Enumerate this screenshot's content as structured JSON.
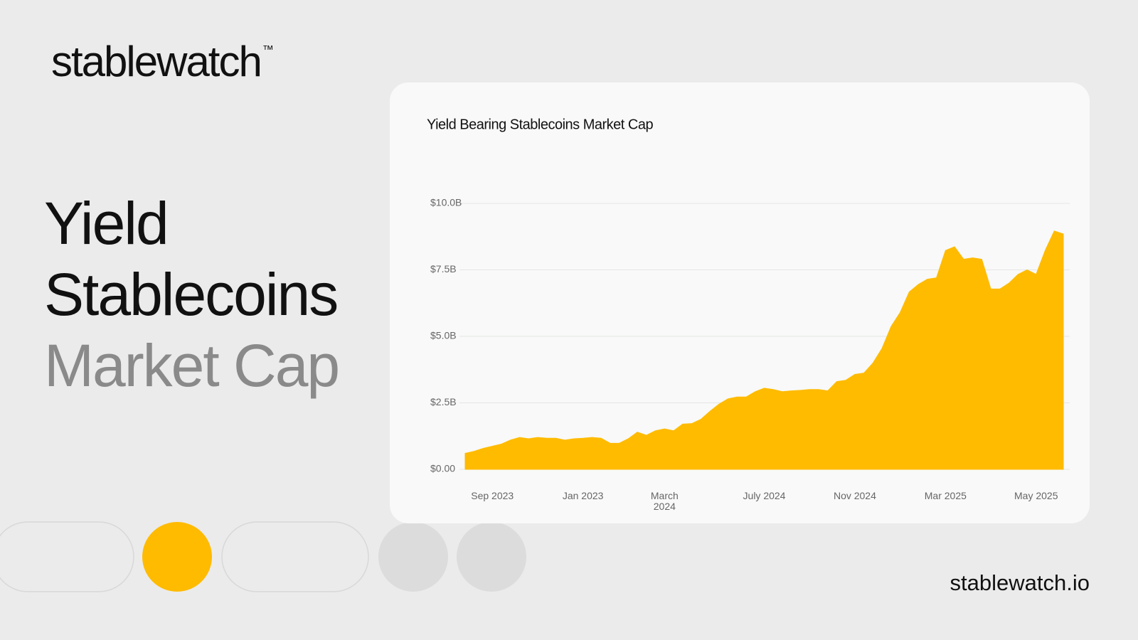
{
  "brand": "stablewatch",
  "brand_mark": "™",
  "headline": [
    "Yield",
    "Stablecoins",
    "Market Cap"
  ],
  "footer": "stablewatch.io",
  "chart_data": {
    "type": "area",
    "title": "Yield Bearing Stablecoins Market Cap",
    "color": "#ffbb00",
    "categories": [
      null,
      null,
      null,
      "Sep 2023",
      null,
      null,
      null,
      null,
      null,
      null,
      null,
      null,
      null,
      "Jan 2023",
      null,
      null,
      null,
      null,
      null,
      null,
      null,
      null,
      "March 2024",
      null,
      null,
      null,
      null,
      null,
      null,
      null,
      null,
      null,
      null,
      "July 2024",
      null,
      null,
      null,
      null,
      null,
      null,
      null,
      null,
      null,
      "Nov 2024",
      null,
      null,
      null,
      null,
      null,
      null,
      null,
      null,
      null,
      "Mar 2025",
      null,
      null,
      null,
      null,
      null,
      null,
      null,
      null,
      null,
      "May 2025",
      null,
      null,
      null
    ],
    "values": [
      0.6,
      0.68,
      0.79,
      0.87,
      0.95,
      1.1,
      1.2,
      1.15,
      1.2,
      1.17,
      1.17,
      1.1,
      1.15,
      1.17,
      1.2,
      1.17,
      0.98,
      0.98,
      1.15,
      1.4,
      1.28,
      1.45,
      1.52,
      1.45,
      1.7,
      1.72,
      1.88,
      2.18,
      2.45,
      2.65,
      2.72,
      2.72,
      2.92,
      3.05,
      3.0,
      2.92,
      2.95,
      2.97,
      3.0,
      3.0,
      2.95,
      3.3,
      3.35,
      3.57,
      3.62,
      4.0,
      4.55,
      5.37,
      5.9,
      6.67,
      6.95,
      7.15,
      7.2,
      8.23,
      8.37,
      7.9,
      7.95,
      7.9,
      6.78,
      6.78,
      7.0,
      7.33,
      7.5,
      7.33,
      8.23,
      8.96,
      8.85
    ],
    "ylim": [
      0,
      10
    ],
    "yticks": [
      {
        "value": 0,
        "label": "$0.00"
      },
      {
        "value": 2.5,
        "label": "$2.5B"
      },
      {
        "value": 5,
        "label": "$5.0B"
      },
      {
        "value": 7.5,
        "label": "$7.5B"
      },
      {
        "value": 10,
        "label": "$10.0B"
      }
    ],
    "grid": true
  }
}
